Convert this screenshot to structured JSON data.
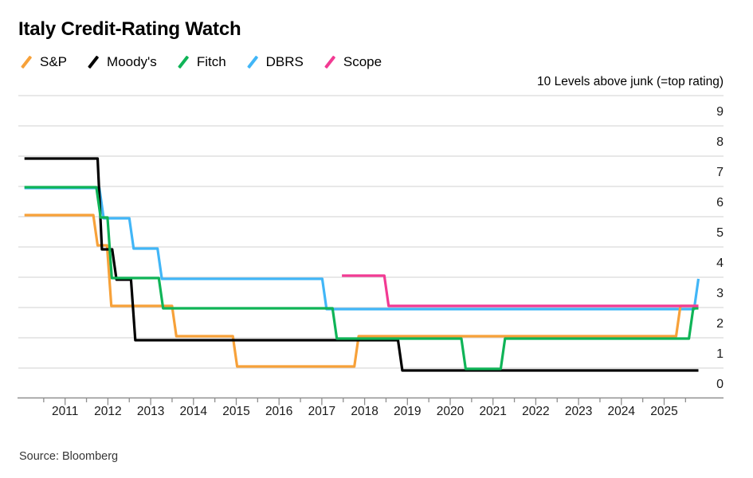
{
  "header": {
    "title": "Italy Credit-Rating Watch"
  },
  "footer": {
    "source": "Source: Bloomberg"
  },
  "chart_data": {
    "type": "line",
    "title": "Italy Credit-Rating Watch",
    "right_axis_label": "10 Levels above junk (=top rating)",
    "xlabel": "",
    "ylabel": "Levels above junk",
    "ylim": [
      0,
      10
    ],
    "ytick_labels": [
      9,
      8,
      7,
      6,
      5,
      4,
      3,
      2,
      1,
      0
    ],
    "year_labels": [
      "2011",
      "2012",
      "2013",
      "2014",
      "2015",
      "2016",
      "2017",
      "2018",
      "2019",
      "2020",
      "2021",
      "2022",
      "2023",
      "2024",
      "2025"
    ],
    "x_range": [
      2010.05,
      2025.8
    ],
    "grid": true,
    "legend_position": "top-left",
    "step_style": "post",
    "series": [
      {
        "name": "S&P",
        "color": "#f7a139",
        "steps": [
          [
            2010.05,
            6
          ],
          [
            2011.66,
            5
          ],
          [
            2011.98,
            3
          ],
          [
            2013.5,
            2
          ],
          [
            2014.92,
            1
          ],
          [
            2017.76,
            2
          ],
          [
            2025.28,
            3
          ]
        ]
      },
      {
        "name": "Moody's",
        "color": "#000000",
        "steps": [
          [
            2010.05,
            8
          ],
          [
            2011.76,
            5
          ],
          [
            2012.1,
            4
          ],
          [
            2012.54,
            2
          ],
          [
            2018.78,
            1
          ]
        ]
      },
      {
        "name": "Fitch",
        "color": "#0fb457",
        "steps": [
          [
            2010.05,
            7
          ],
          [
            2011.73,
            6
          ],
          [
            2011.99,
            4
          ],
          [
            2013.19,
            3
          ],
          [
            2017.25,
            2
          ],
          [
            2020.26,
            1
          ],
          [
            2021.18,
            2
          ],
          [
            2025.58,
            3
          ]
        ]
      },
      {
        "name": "DBRS",
        "color": "#41b6f7",
        "steps": [
          [
            2010.05,
            7
          ],
          [
            2011.8,
            6
          ],
          [
            2012.5,
            5
          ],
          [
            2013.16,
            4
          ],
          [
            2017.01,
            3
          ],
          [
            2025.7,
            4
          ]
        ]
      },
      {
        "name": "Scope",
        "color": "#f23a93",
        "steps": [
          [
            2017.47,
            4
          ],
          [
            2018.46,
            3
          ]
        ]
      }
    ],
    "style_colors": {
      "grid": "#d9d9d9",
      "axis": "#8f8f8f",
      "tick_text": "#1a1a1a"
    }
  }
}
